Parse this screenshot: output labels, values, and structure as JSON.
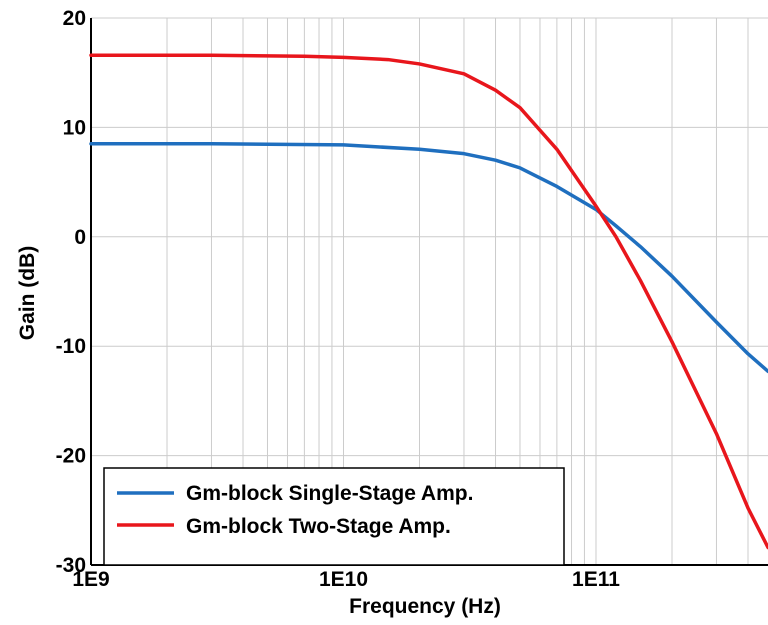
{
  "chart_data": {
    "type": "line",
    "title": "",
    "xlabel": "Frequency (Hz)",
    "ylabel": "Gain (dB)",
    "x_scale": "log",
    "xlim": [
      1000000000,
      480000000000
    ],
    "ylim": [
      -30,
      20
    ],
    "x_ticks": [
      {
        "value": 1000000000,
        "label": "1E9"
      },
      {
        "value": 10000000000,
        "label": "1E10"
      },
      {
        "value": 100000000000,
        "label": "1E11"
      }
    ],
    "y_ticks": [
      {
        "value": 20,
        "label": "20"
      },
      {
        "value": 10,
        "label": "10"
      },
      {
        "value": 0,
        "label": "0"
      },
      {
        "value": -10,
        "label": "-10"
      },
      {
        "value": -20,
        "label": "-20"
      },
      {
        "value": -30,
        "label": "-30"
      }
    ],
    "grid": true,
    "legend": {
      "position": "bottom-left"
    },
    "series": [
      {
        "name": "Gm-block Single-Stage Amp.",
        "color": "#1f6fbf",
        "points": [
          [
            1000000000,
            8.5
          ],
          [
            3000000000,
            8.5
          ],
          [
            10000000000,
            8.4
          ],
          [
            20000000000,
            8.0
          ],
          [
            30000000000,
            7.6
          ],
          [
            40000000000,
            7.0
          ],
          [
            50000000000,
            6.3
          ],
          [
            70000000000,
            4.6
          ],
          [
            100000000000,
            2.5
          ],
          [
            120000000000,
            1.0
          ],
          [
            150000000000,
            -0.9
          ],
          [
            200000000000,
            -3.6
          ],
          [
            300000000000,
            -7.8
          ],
          [
            400000000000,
            -10.7
          ],
          [
            480000000000,
            -12.3
          ]
        ]
      },
      {
        "name": "Gm-block Two-Stage Amp.",
        "color": "#e8161c",
        "points": [
          [
            1000000000,
            16.6
          ],
          [
            3000000000,
            16.6
          ],
          [
            7000000000,
            16.5
          ],
          [
            10000000000,
            16.4
          ],
          [
            15000000000,
            16.2
          ],
          [
            20000000000,
            15.8
          ],
          [
            30000000000,
            14.9
          ],
          [
            40000000000,
            13.4
          ],
          [
            50000000000,
            11.8
          ],
          [
            70000000000,
            8.0
          ],
          [
            100000000000,
            2.8
          ],
          [
            120000000000,
            0.0
          ],
          [
            150000000000,
            -4.0
          ],
          [
            200000000000,
            -9.6
          ],
          [
            300000000000,
            -18.0
          ],
          [
            400000000000,
            -24.8
          ],
          [
            480000000000,
            -28.4
          ]
        ]
      }
    ]
  }
}
